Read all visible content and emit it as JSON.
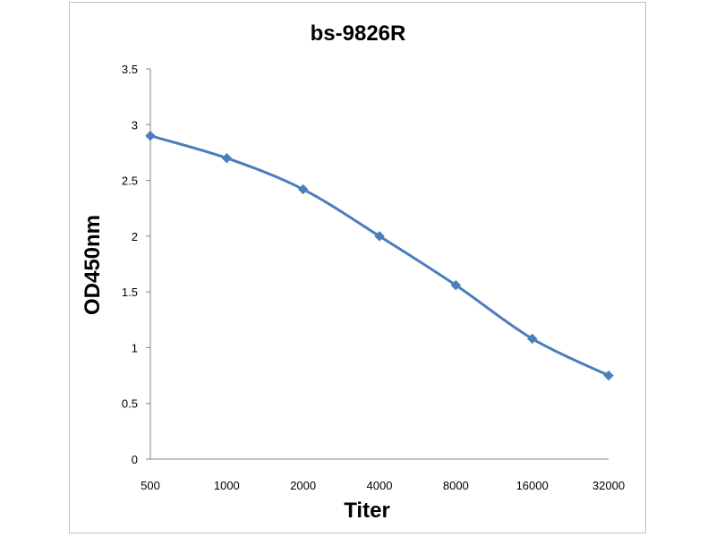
{
  "chart_data": {
    "type": "line",
    "title": "bs-9826R",
    "xlabel": "Titer",
    "ylabel": "OD450nm",
    "categories": [
      "500",
      "1000",
      "2000",
      "4000",
      "8000",
      "16000",
      "32000"
    ],
    "series": [
      {
        "values": [
          2.9,
          2.7,
          2.42,
          2.0,
          1.56,
          1.08,
          0.75
        ]
      }
    ],
    "ylim": [
      0,
      3.5
    ],
    "yticks": [
      "0",
      "0.5",
      "1",
      "1.5",
      "2",
      "2.5",
      "3",
      "3.5"
    ],
    "grid": false,
    "legend": "none",
    "line_color": "#4a7ebb",
    "marker": "diamond"
  }
}
